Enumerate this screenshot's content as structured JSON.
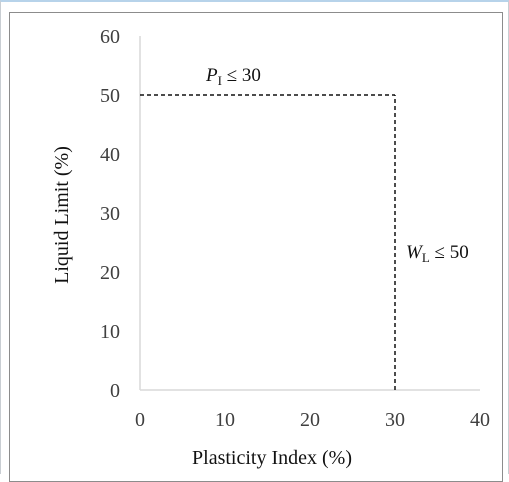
{
  "chart_data": {
    "type": "line",
    "xlabel": "Plasticity Index (%)",
    "ylabel": "Liquid Limit (%)",
    "xlim": [
      0,
      40
    ],
    "ylim": [
      0,
      60
    ],
    "xticks": [
      0,
      10,
      20,
      30,
      40
    ],
    "yticks": [
      0,
      10,
      20,
      30,
      40,
      50,
      60
    ],
    "grid": false,
    "series": [
      {
        "x": [
          0,
          30
        ],
        "y": [
          50,
          50
        ],
        "style": "dashed",
        "color": "#111111"
      },
      {
        "x": [
          30,
          30
        ],
        "y": [
          0,
          50
        ],
        "style": "dashed",
        "color": "#111111"
      }
    ],
    "annotations": [
      {
        "var": "P",
        "sub": "I",
        "rel": " ≤ 30"
      },
      {
        "var": "W",
        "sub": "L",
        "rel": " ≤ 50"
      }
    ],
    "axis_color": "#d9d9d9",
    "tick_color": "#404040"
  }
}
